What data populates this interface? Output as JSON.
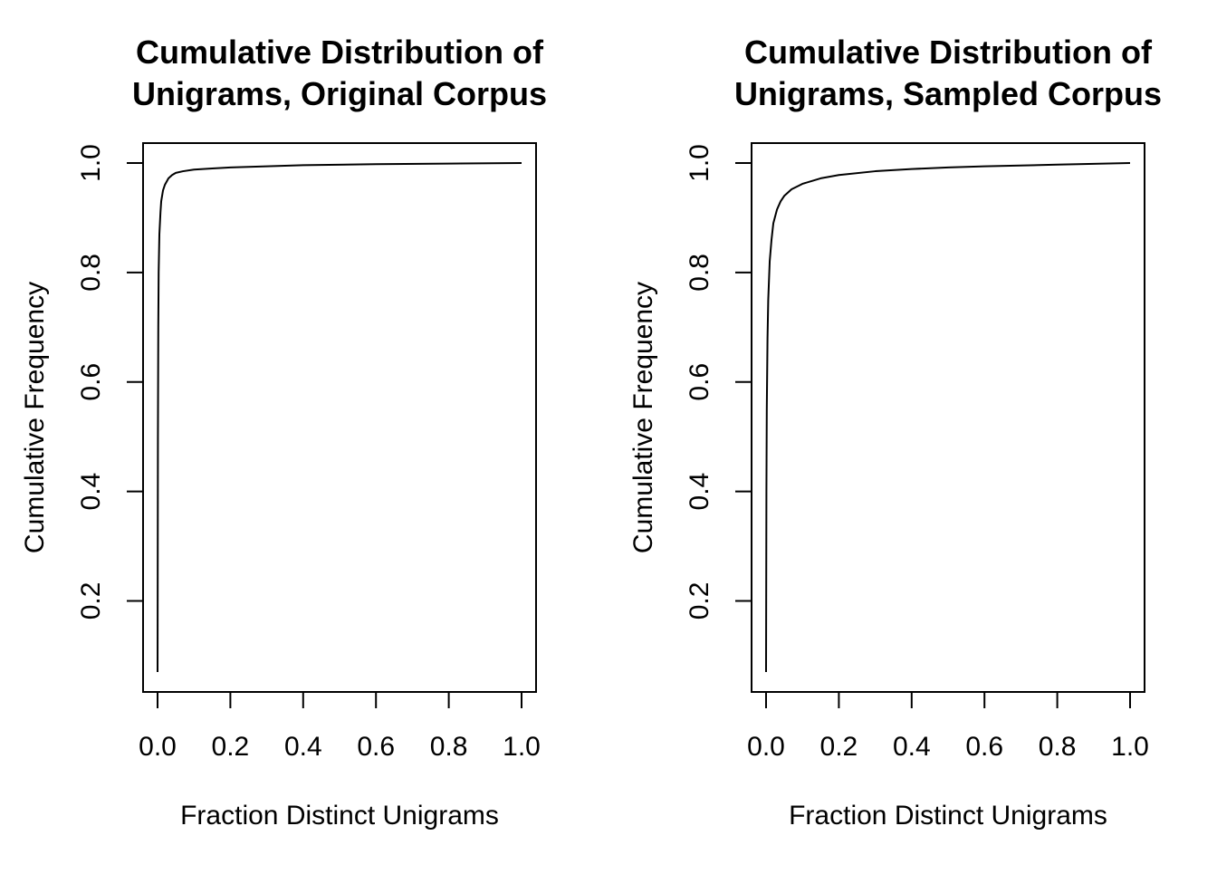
{
  "chart_data": [
    {
      "type": "line",
      "title": [
        "Cumulative Distribution of",
        "Unigrams, Original Corpus"
      ],
      "xlabel": "Fraction Distinct Unigrams",
      "ylabel": "Cumulative Frequency",
      "xlim": [
        0.0,
        1.0
      ],
      "ylim": [
        0.07,
        1.0
      ],
      "xticks": [
        "0.0",
        "0.2",
        "0.4",
        "0.6",
        "0.8",
        "1.0"
      ],
      "yticks": [
        "0.2",
        "0.4",
        "0.6",
        "0.8",
        "1.0"
      ],
      "grid": false,
      "legend": "none",
      "series": [
        {
          "x": [
            0.0,
            0.001,
            0.002,
            0.003,
            0.005,
            0.008,
            0.01,
            0.015,
            0.02,
            0.03,
            0.04,
            0.05,
            0.07,
            0.1,
            0.15,
            0.2,
            0.3,
            0.4,
            0.6,
            0.8,
            1.0
          ],
          "y": [
            0.07,
            0.5,
            0.7,
            0.8,
            0.87,
            0.91,
            0.93,
            0.95,
            0.96,
            0.972,
            0.978,
            0.982,
            0.985,
            0.988,
            0.99,
            0.992,
            0.994,
            0.996,
            0.998,
            0.999,
            1.0
          ]
        }
      ]
    },
    {
      "type": "line",
      "title": [
        "Cumulative Distribution of",
        "Unigrams, Sampled Corpus"
      ],
      "xlabel": "Fraction Distinct Unigrams",
      "ylabel": "Cumulative Frequency",
      "xlim": [
        0.0,
        1.0
      ],
      "ylim": [
        0.07,
        1.0
      ],
      "xticks": [
        "0.0",
        "0.2",
        "0.4",
        "0.6",
        "0.8",
        "1.0"
      ],
      "yticks": [
        "0.2",
        "0.4",
        "0.6",
        "0.8",
        "1.0"
      ],
      "grid": false,
      "legend": "none",
      "series": [
        {
          "x": [
            0.0,
            0.001,
            0.002,
            0.004,
            0.006,
            0.01,
            0.015,
            0.02,
            0.03,
            0.04,
            0.05,
            0.07,
            0.1,
            0.15,
            0.2,
            0.3,
            0.4,
            0.5,
            0.6,
            0.8,
            1.0
          ],
          "y": [
            0.07,
            0.4,
            0.55,
            0.68,
            0.75,
            0.82,
            0.86,
            0.89,
            0.915,
            0.93,
            0.94,
            0.952,
            0.962,
            0.972,
            0.978,
            0.985,
            0.989,
            0.992,
            0.994,
            0.997,
            1.0
          ]
        }
      ]
    }
  ]
}
